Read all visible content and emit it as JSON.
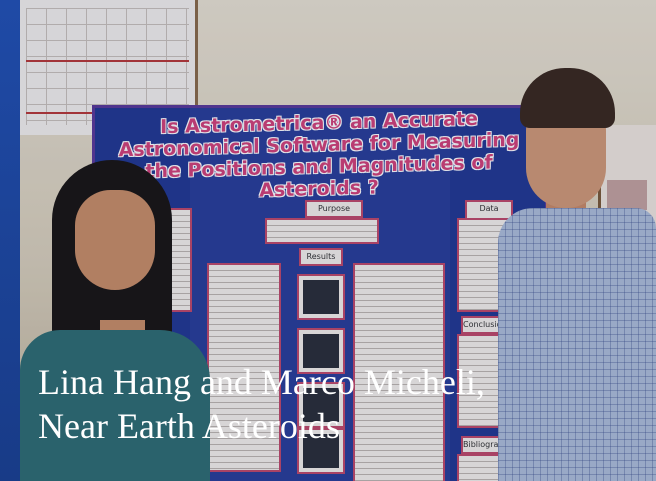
{
  "slide": {
    "caption_line1": "Lina Hang and Marco Micheli,",
    "caption_line2": "Near Earth Asteroids",
    "background_color": "#1c3f8f"
  },
  "poster": {
    "title": "Is Astrometrica® an Accurate Astronomical Software for Measuring the Positions and Magnitudes of Asteroids ?",
    "purpose_label": "Purpose",
    "results_label": "Results",
    "data_label": "Data analysis",
    "conclusion_label": "Conclusion",
    "bibliography_label": "Bibliography"
  }
}
